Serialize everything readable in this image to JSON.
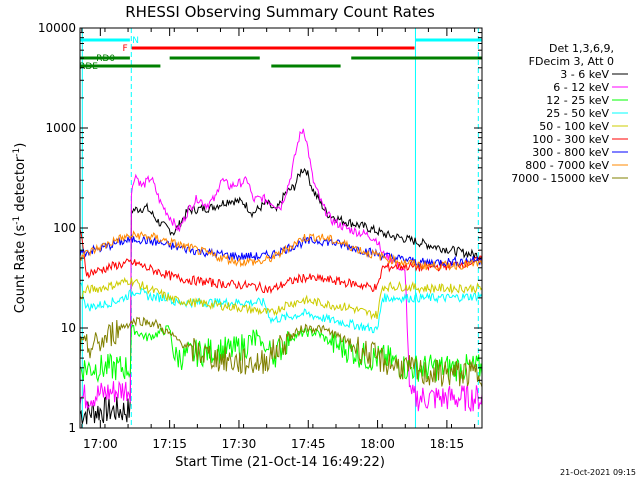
{
  "chart_data": {
    "type": "line",
    "title": "RHESSI Observing Summary Count Rates",
    "xlabel": "Start Time (21-Oct-14 16:49:22)",
    "ylabel_main": "Count Rate (s",
    "ylabel_sup": "-1",
    "ylabel_tail": " detector",
    "ylabel_sup2": "-1",
    "ylabel_close": ")",
    "y_scale": "log",
    "ylim": [
      1,
      10000
    ],
    "xlim_minutes": [
      -4.4,
      82.6
    ],
    "y_ticks": [
      {
        "v": 1,
        "label": "1"
      },
      {
        "v": 10,
        "label": "10"
      },
      {
        "v": 100,
        "label": "100"
      },
      {
        "v": 1000,
        "label": "1000"
      },
      {
        "v": 10000,
        "label": "10000"
      }
    ],
    "x_ticks": [
      {
        "t": 0,
        "label": "17:00"
      },
      {
        "t": 15,
        "label": "17:15"
      },
      {
        "t": 30,
        "label": "17:30"
      },
      {
        "t": 45,
        "label": "17:45"
      },
      {
        "t": 60,
        "label": "18:00"
      },
      {
        "t": 75,
        "label": "18:15"
      }
    ],
    "grid": false,
    "legend_position": "right",
    "legend_header": [
      "Det 1,3,6,9,",
      "FDecim 3, Att 0"
    ],
    "series": [
      {
        "name": "3 - 6 keV",
        "color": "#000000",
        "points": [
          [
            -4.4,
            1.4
          ],
          [
            0,
            1.5
          ],
          [
            6.5,
            1.5
          ],
          [
            6.6,
            150
          ],
          [
            10,
            160
          ],
          [
            13,
            110
          ],
          [
            16,
            90
          ],
          [
            19,
            150
          ],
          [
            24,
            160
          ],
          [
            28,
            190
          ],
          [
            31,
            180
          ],
          [
            33,
            140
          ],
          [
            36,
            180
          ],
          [
            38,
            145
          ],
          [
            40,
            220
          ],
          [
            42,
            260
          ],
          [
            43.5,
            380
          ],
          [
            44.5,
            390
          ],
          [
            46,
            240
          ],
          [
            49,
            140
          ],
          [
            52,
            120
          ],
          [
            55,
            110
          ],
          [
            58,
            100
          ],
          [
            62,
            85
          ],
          [
            65,
            80
          ],
          [
            69,
            72
          ],
          [
            72,
            66
          ],
          [
            76,
            60
          ],
          [
            80,
            55
          ],
          [
            82.6,
            52
          ]
        ]
      },
      {
        "name": "6 - 12 keV",
        "color": "#ff00ff",
        "points": [
          [
            -4.4,
            2
          ],
          [
            6.5,
            2.5
          ],
          [
            6.6,
            200
          ],
          [
            7.5,
            350
          ],
          [
            9,
            260
          ],
          [
            11,
            320
          ],
          [
            13,
            180
          ],
          [
            15,
            130
          ],
          [
            17,
            95
          ],
          [
            19,
            150
          ],
          [
            21,
            200
          ],
          [
            23,
            170
          ],
          [
            25,
            200
          ],
          [
            26,
            310
          ],
          [
            28,
            260
          ],
          [
            30,
            280
          ],
          [
            32,
            300
          ],
          [
            33,
            190
          ],
          [
            35,
            200
          ],
          [
            37,
            180
          ],
          [
            39,
            160
          ],
          [
            41,
            300
          ],
          [
            43,
            800
          ],
          [
            44,
            1000
          ],
          [
            45,
            600
          ],
          [
            46,
            300
          ],
          [
            48,
            170
          ],
          [
            50,
            120
          ],
          [
            53,
            100
          ],
          [
            56,
            90
          ],
          [
            58,
            85
          ],
          [
            60,
            75
          ],
          [
            61,
            55
          ],
          [
            63,
            50
          ],
          [
            66,
            35
          ],
          [
            67,
            2
          ],
          [
            75,
            2
          ],
          [
            82.6,
            2
          ]
        ]
      },
      {
        "name": "12 - 25 keV",
        "color": "#00ff00",
        "points": [
          [
            -4.4,
            4
          ],
          [
            6.5,
            4
          ],
          [
            6.6,
            10
          ],
          [
            10,
            8
          ],
          [
            13,
            9
          ],
          [
            15,
            10
          ],
          [
            16,
            5
          ],
          [
            20,
            5.5
          ],
          [
            25,
            6
          ],
          [
            29,
            6
          ],
          [
            32,
            7
          ],
          [
            34,
            8
          ],
          [
            36,
            6
          ],
          [
            38,
            5.5
          ],
          [
            41,
            8
          ],
          [
            44,
            9
          ],
          [
            47,
            9
          ],
          [
            50,
            7
          ],
          [
            54,
            6
          ],
          [
            58,
            5
          ],
          [
            60,
            5
          ],
          [
            62,
            5
          ],
          [
            66,
            4
          ],
          [
            70,
            4
          ],
          [
            75,
            4
          ],
          [
            82.6,
            4
          ]
        ]
      },
      {
        "name": "25 - 50 keV",
        "color": "#00ffff",
        "points": [
          [
            -4.4,
            30
          ],
          [
            -3,
            16
          ],
          [
            0,
            17
          ],
          [
            4,
            19
          ],
          [
            6.6,
            22
          ],
          [
            8,
            24
          ],
          [
            10,
            21
          ],
          [
            13,
            20
          ],
          [
            15,
            21
          ],
          [
            15.6,
            18
          ],
          [
            20,
            18
          ],
          [
            25,
            18
          ],
          [
            30,
            18
          ],
          [
            34,
            18
          ],
          [
            35.5,
            18
          ],
          [
            37,
            12
          ],
          [
            41,
            13
          ],
          [
            44,
            14
          ],
          [
            47,
            13
          ],
          [
            50,
            12
          ],
          [
            54,
            11
          ],
          [
            58,
            10
          ],
          [
            60,
            9.5
          ],
          [
            61,
            20
          ],
          [
            65,
            20
          ],
          [
            70,
            20
          ],
          [
            75,
            20
          ],
          [
            82.6,
            21
          ]
        ]
      },
      {
        "name": "50 - 100 keV",
        "color": "#cccc00",
        "points": [
          [
            -4.4,
            20
          ],
          [
            -3,
            24
          ],
          [
            0,
            25
          ],
          [
            3,
            27
          ],
          [
            6.5,
            30
          ],
          [
            7.5,
            29
          ],
          [
            10,
            25
          ],
          [
            13,
            22
          ],
          [
            16,
            19
          ],
          [
            20,
            18
          ],
          [
            25,
            17
          ],
          [
            30,
            16
          ],
          [
            34,
            15
          ],
          [
            37,
            14
          ],
          [
            40,
            17
          ],
          [
            44,
            19
          ],
          [
            47,
            18
          ],
          [
            50,
            17
          ],
          [
            54,
            16
          ],
          [
            58,
            14
          ],
          [
            60,
            13.5
          ],
          [
            61,
            26
          ],
          [
            65,
            26
          ],
          [
            70,
            25
          ],
          [
            75,
            25
          ],
          [
            82.6,
            25
          ]
        ]
      },
      {
        "name": "100 - 300 keV",
        "color": "#ff0000",
        "points": [
          [
            -4.4,
            100
          ],
          [
            -3,
            35
          ],
          [
            0,
            38
          ],
          [
            3,
            42
          ],
          [
            6.5,
            45
          ],
          [
            8,
            44
          ],
          [
            10,
            40
          ],
          [
            13,
            36
          ],
          [
            16,
            32
          ],
          [
            20,
            30
          ],
          [
            25,
            28
          ],
          [
            30,
            27
          ],
          [
            34,
            26
          ],
          [
            37,
            24
          ],
          [
            40,
            28
          ],
          [
            44,
            32
          ],
          [
            47,
            31
          ],
          [
            50,
            30
          ],
          [
            54,
            28
          ],
          [
            58,
            26
          ],
          [
            60,
            25
          ],
          [
            61,
            40
          ],
          [
            65,
            42
          ],
          [
            70,
            40
          ],
          [
            75,
            42
          ],
          [
            80,
            45
          ],
          [
            82.6,
            48
          ]
        ]
      },
      {
        "name": "300 - 800 keV",
        "color": "#0000ff",
        "points": [
          [
            -4.4,
            56
          ],
          [
            0,
            62
          ],
          [
            4,
            72
          ],
          [
            8,
            78
          ],
          [
            12,
            72
          ],
          [
            16,
            65
          ],
          [
            20,
            60
          ],
          [
            25,
            55
          ],
          [
            30,
            52
          ],
          [
            35,
            52
          ],
          [
            38,
            56
          ],
          [
            41,
            64
          ],
          [
            44,
            72
          ],
          [
            47,
            75
          ],
          [
            50,
            72
          ],
          [
            54,
            65
          ],
          [
            58,
            58
          ],
          [
            62,
            52
          ],
          [
            66,
            48
          ],
          [
            70,
            45
          ],
          [
            75,
            46
          ],
          [
            82.6,
            48
          ]
        ]
      },
      {
        "name": "800 - 7000 keV",
        "color": "#ff8800",
        "points": [
          [
            -4.4,
            52
          ],
          [
            0,
            64
          ],
          [
            4,
            78
          ],
          [
            8,
            85
          ],
          [
            12,
            80
          ],
          [
            16,
            70
          ],
          [
            20,
            62
          ],
          [
            25,
            52
          ],
          [
            30,
            46
          ],
          [
            35,
            46
          ],
          [
            38,
            52
          ],
          [
            41,
            65
          ],
          [
            44,
            80
          ],
          [
            47,
            82
          ],
          [
            50,
            76
          ],
          [
            54,
            66
          ],
          [
            58,
            56
          ],
          [
            62,
            50
          ],
          [
            66,
            45
          ],
          [
            70,
            42
          ],
          [
            75,
            42
          ],
          [
            82.6,
            44
          ]
        ]
      },
      {
        "name": "7000 - 15000 keV",
        "color": "#808000",
        "points": [
          [
            -4.4,
            6
          ],
          [
            0,
            7
          ],
          [
            4,
            10
          ],
          [
            8,
            12
          ],
          [
            12,
            11
          ],
          [
            16,
            8
          ],
          [
            20,
            6
          ],
          [
            25,
            5
          ],
          [
            30,
            4.5
          ],
          [
            35,
            4.5
          ],
          [
            38,
            6
          ],
          [
            41,
            8
          ],
          [
            44,
            10
          ],
          [
            47,
            10
          ],
          [
            50,
            9
          ],
          [
            54,
            7
          ],
          [
            58,
            5.5
          ],
          [
            62,
            4.5
          ],
          [
            66,
            4
          ],
          [
            70,
            3.5
          ],
          [
            75,
            3.5
          ],
          [
            82.6,
            3.5
          ]
        ]
      }
    ],
    "flags": [
      {
        "label": "N",
        "color": "#00ffff",
        "label_at": 6.9,
        "segments": [
          [
            -4.4,
            6.4
          ],
          [
            68.2,
            82.6
          ]
        ]
      },
      {
        "label": "F",
        "color": "#ff0000",
        "label_at": 4.8,
        "segments": [
          [
            6.8,
            68.0
          ]
        ]
      },
      {
        "label": "RD0",
        "color": "#008000",
        "label_at": -0.9,
        "segments": [
          [
            -4.4,
            6.4
          ],
          [
            15.0,
            34.5
          ],
          [
            54.3,
            82.6
          ]
        ]
      },
      {
        "label": "RDE",
        "color": "#008000",
        "label_at": -4.6,
        "segments": [
          [
            -4.4,
            13.0
          ],
          [
            37.0,
            52.0
          ]
        ]
      }
    ],
    "vertical_markers": [
      {
        "t": -3.9,
        "color": "#00ffff",
        "style": "solid"
      },
      {
        "t": 6.7,
        "color": "#00ffff",
        "style": "dashed"
      },
      {
        "t": 68.2,
        "color": "#00ffff",
        "style": "solid"
      },
      {
        "t": 81.8,
        "color": "#00ffff",
        "style": "dashed"
      }
    ]
  },
  "timestamp": "21-Oct-2021 09:15"
}
